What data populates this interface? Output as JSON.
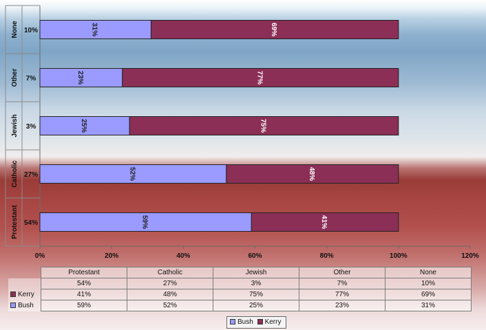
{
  "chart_data": {
    "type": "bar",
    "orientation": "horizontal",
    "stacked": true,
    "categories": [
      "Protestant",
      "Catholic",
      "Jewish",
      "Other",
      "None"
    ],
    "category_shares": [
      "54%",
      "27%",
      "3%",
      "7%",
      "10%"
    ],
    "series": [
      {
        "name": "Bush",
        "values": [
          59,
          52,
          25,
          23,
          31
        ],
        "labels": [
          "59%",
          "52%",
          "25%",
          "23%",
          "31%"
        ],
        "color": "#9a9aff"
      },
      {
        "name": "Kerry",
        "values": [
          41,
          48,
          75,
          77,
          69
        ],
        "labels": [
          "41%",
          "48%",
          "75%",
          "77%",
          "69%"
        ],
        "color": "#8b2f56"
      }
    ],
    "xlim": [
      0,
      120
    ],
    "xticks": [
      "0%",
      "20%",
      "40%",
      "60%",
      "80%",
      "100%",
      "120%"
    ],
    "legend": "bottom",
    "table": {
      "columns": [
        "Protestant",
        "Catholic",
        "Jewish",
        "Other",
        "None"
      ],
      "share_row": [
        "54%",
        "27%",
        "3%",
        "7%",
        "10%"
      ],
      "rows": [
        {
          "name": "Kerry",
          "cells": [
            "41%",
            "48%",
            "75%",
            "77%",
            "69%"
          ]
        },
        {
          "name": "Bush",
          "cells": [
            "59%",
            "52%",
            "25%",
            "23%",
            "31%"
          ]
        }
      ]
    }
  }
}
